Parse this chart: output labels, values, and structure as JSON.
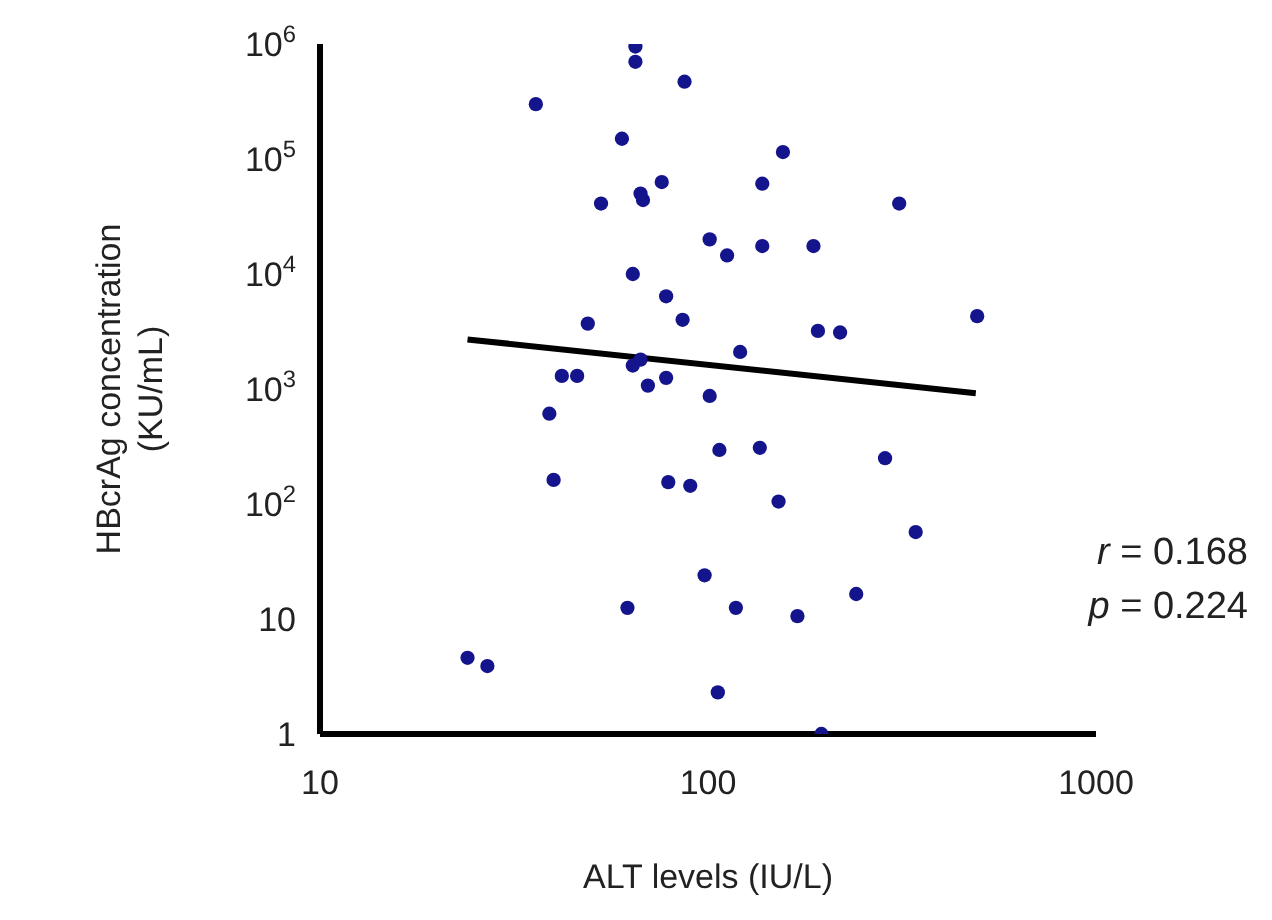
{
  "chart_data": {
    "type": "scatter",
    "xlabel": "ALT levels (IU/L)",
    "ylabel": "HBcrAg concentration\n(KU/mL)",
    "log": "xy",
    "grid": false,
    "xlim": [
      10,
      1000
    ],
    "xticks": [
      10,
      100,
      1000
    ],
    "ylim": [
      1,
      1000000
    ],
    "yticks": [
      1,
      10,
      {
        "value": 100,
        "label": "10$^{2}$"
      },
      {
        "value": 1000,
        "label": "10$^{3}$"
      },
      {
        "value": 10000,
        "label": "10$^{4}$"
      },
      {
        "value": 100000,
        "label": "10$^{5}$"
      },
      {
        "value": 1000000,
        "label": "10$^{6}$"
      }
    ],
    "series": [
      {
        "color": "#14148c",
        "marker": "circle",
        "x": [
          36,
          65,
          65,
          87,
          60,
          156,
          53,
          67,
          68,
          76,
          138,
          311,
          101,
          112,
          138,
          187,
          64,
          78,
          86,
          494,
          192,
          219,
          121,
          64,
          67,
          70,
          78,
          101,
          107,
          136,
          286,
          79,
          90,
          152,
          343,
          98,
          62,
          118,
          170,
          241,
          106,
          196,
          40,
          24,
          27,
          49,
          42,
          46,
          39
        ],
        "values": [
          300000,
          950000,
          700000,
          470000,
          150000,
          115000,
          41000,
          50000,
          44000,
          63000,
          61000,
          41000,
          20000,
          14500,
          17500,
          17500,
          10000,
          6400,
          4000,
          4300,
          3200,
          3100,
          2100,
          1600,
          1800,
          1070,
          1250,
          870,
          295,
          308,
          250,
          155,
          144,
          105,
          57,
          24,
          12.5,
          12.5,
          10.6,
          16.5,
          2.3,
          1,
          162,
          4.6,
          3.9,
          3700,
          1300,
          1300,
          610
        ]
      },
      {
        "type": "line",
        "color": "#000000",
        "x": [
          24,
          490
        ],
        "values": [
          2700,
          920
        ]
      }
    ],
    "annotations": [
      "r = 0.168",
      "p = 0.224"
    ]
  }
}
